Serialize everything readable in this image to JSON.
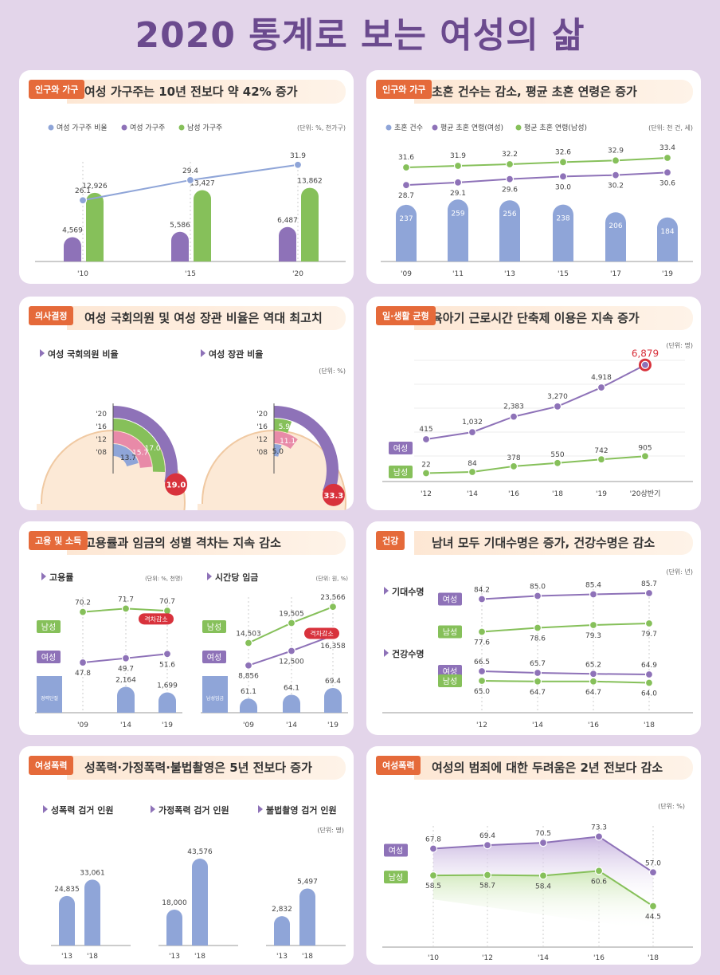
{
  "page_title": "2020 통계로 보는 여성의 삶",
  "colors": {
    "purple": "#8e72b8",
    "green": "#86c05a",
    "blue": "#8fa5d8",
    "red": "#d8323c",
    "orange": "#e56a3a"
  },
  "chart_data": [
    {
      "id": "c1",
      "tag": "인구와 가구",
      "headline": "여성 가구주는 10년 전보다 약 42% 증가",
      "type": "bar+line",
      "unit": "(단위: %, 천가구)",
      "legend": [
        "여성 가구주 비율",
        "여성 가구주",
        "남성 가구주"
      ],
      "categories": [
        "'10",
        "'15",
        "'20"
      ],
      "line": {
        "name": "여성 가구주 비율",
        "values": [
          26.1,
          29.4,
          31.9
        ],
        "labels": [
          "26.1",
          "29.4",
          "31.9"
        ]
      },
      "series": [
        {
          "name": "여성 가구주",
          "values": [
            4569,
            5586,
            6487
          ],
          "labels": [
            "4,569",
            "5,586",
            "6,487"
          ]
        },
        {
          "name": "남성 가구주",
          "values": [
            12926,
            13427,
            13862
          ],
          "labels": [
            "12,926",
            "13,427",
            "13,862"
          ]
        }
      ]
    },
    {
      "id": "c2",
      "tag": "인구와 가구",
      "headline": "초혼 건수는 감소, 평균 초혼 연령은 증가",
      "type": "bar+line",
      "unit": "(단위: 천 건, 세)",
      "legend": [
        "초혼 건수",
        "평균 초혼 연령(여성)",
        "평균 초혼 연령(남성)"
      ],
      "categories": [
        "'09",
        "'11",
        "'13",
        "'15",
        "'17",
        "'19"
      ],
      "bars": {
        "name": "초혼 건수",
        "values": [
          237,
          259,
          256,
          238,
          206,
          184
        ],
        "labels": [
          "237",
          "259",
          "256",
          "238",
          "206",
          "184"
        ]
      },
      "lines": [
        {
          "name": "평균 초혼 연령(남성)",
          "values": [
            31.6,
            31.9,
            32.2,
            32.6,
            32.9,
            33.4
          ],
          "labels": [
            "31.6",
            "31.9",
            "32.2",
            "32.6",
            "32.9",
            "33.4"
          ]
        },
        {
          "name": "평균 초혼 연령(여성)",
          "values": [
            28.7,
            29.1,
            29.6,
            30.0,
            30.2,
            30.6
          ],
          "labels": [
            "28.7",
            "29.1",
            "29.6",
            "30.0",
            "30.2",
            "30.6"
          ]
        }
      ]
    },
    {
      "id": "c3",
      "tag": "의사결정",
      "headline": "여성 국회의원 및 여성 장관 비율은 역대 최고치",
      "type": "radial-bar",
      "unit": "(단위: %)",
      "charts": [
        {
          "title": "여성 국회의원 비율",
          "years": [
            "'20",
            "'16",
            "'12",
            "'08"
          ],
          "values": [
            19.0,
            17.0,
            15.7,
            13.7
          ],
          "labels": [
            "19.0",
            "17.0",
            "15.7",
            "13.7"
          ]
        },
        {
          "title": "여성 장관 비율",
          "years": [
            "'20",
            "'16",
            "'12",
            "'08"
          ],
          "values": [
            33.3,
            5.9,
            11.1,
            5.0
          ],
          "labels": [
            "33.3",
            "5.9",
            "11.1",
            "5.0"
          ]
        }
      ]
    },
    {
      "id": "c4",
      "tag": "일·생활 균형",
      "headline": "육아기 근로시간 단축제 이용은 지속 증가",
      "type": "line",
      "unit": "(단위: 명)",
      "categories": [
        "'12",
        "'14",
        "'16",
        "'18",
        "'19",
        "'20상반기"
      ],
      "series": [
        {
          "name": "여성",
          "values": [
            415,
            1032,
            2383,
            3270,
            4918,
            6879
          ],
          "labels": [
            "415",
            "1,032",
            "2,383",
            "3,270",
            "4,918",
            "6,879"
          ]
        },
        {
          "name": "남성",
          "values": [
            22,
            84,
            378,
            550,
            742,
            905
          ],
          "labels": [
            "22",
            "84",
            "378",
            "550",
            "742",
            "905"
          ]
        }
      ]
    },
    {
      "id": "c5",
      "tag": "고용 및 소득",
      "headline": "고용률과 임금의 성별 격차는 지속 감소",
      "type": "line+bar",
      "gap_label": "격차감소",
      "charts": [
        {
          "title": "고용률",
          "unit": "(단위: %, 천명)",
          "categories": [
            "'09",
            "'14",
            "'19"
          ],
          "male": {
            "name": "남성",
            "values": [
              70.2,
              71.7,
              70.7
            ],
            "labels": [
              "70.2",
              "71.7",
              "70.7"
            ]
          },
          "female": {
            "name": "여성",
            "values": [
              47.8,
              49.7,
              51.6
            ],
            "labels": [
              "47.8",
              "49.7",
              "51.6"
            ]
          },
          "bars": {
            "name": "경력단절여성",
            "values": [
              null,
              2164,
              1699
            ],
            "labels": [
              "",
              "2,164",
              "1,699"
            ]
          }
        },
        {
          "title": "시간당 임금",
          "unit": "(단위: 원, %)",
          "categories": [
            "'09",
            "'14",
            "'19"
          ],
          "male": {
            "name": "남성",
            "values": [
              14503,
              19505,
              23566
            ],
            "labels": [
              "14,503",
              "19,505",
              "23,566"
            ]
          },
          "female": {
            "name": "여성",
            "values": [
              8856,
              12500,
              16358
            ],
            "labels": [
              "8,856",
              "12,500",
              "16,358"
            ]
          },
          "bars": {
            "name": "남성임금대비여성임금비율",
            "values": [
              61.1,
              64.1,
              69.4
            ],
            "labels": [
              "61.1",
              "64.1",
              "69.4"
            ]
          }
        }
      ]
    },
    {
      "id": "c6",
      "tag": "건강",
      "headline": "남녀 모두 기대수명은 증가, 건강수명은 감소",
      "type": "line",
      "unit": "(단위: 년)",
      "categories": [
        "'12",
        "'14",
        "'16",
        "'18"
      ],
      "groups": [
        {
          "title": "기대수명",
          "female": {
            "name": "여성",
            "values": [
              84.2,
              85.0,
              85.4,
              85.7
            ],
            "labels": [
              "84.2",
              "85.0",
              "85.4",
              "85.7"
            ]
          },
          "male": {
            "name": "남성",
            "values": [
              77.6,
              78.6,
              79.3,
              79.7
            ],
            "labels": [
              "77.6",
              "78.6",
              "79.3",
              "79.7"
            ]
          }
        },
        {
          "title": "건강수명",
          "female": {
            "name": "여성",
            "values": [
              66.5,
              65.7,
              65.2,
              64.9
            ],
            "labels": [
              "66.5",
              "65.7",
              "65.2",
              "64.9"
            ]
          },
          "male": {
            "name": "남성",
            "values": [
              65.0,
              64.7,
              64.7,
              64.0
            ],
            "labels": [
              "65.0",
              "64.7",
              "64.7",
              "64.0"
            ]
          }
        }
      ]
    },
    {
      "id": "c7",
      "tag": "여성폭력",
      "headline": "성폭력·가정폭력·불법촬영은 5년 전보다 증가",
      "type": "bar",
      "unit": "(단위: 명)",
      "charts": [
        {
          "title": "성폭력 검거 인원",
          "categories": [
            "'13",
            "'18"
          ],
          "values": [
            24835,
            33061
          ],
          "labels": [
            "24,835",
            "33,061"
          ]
        },
        {
          "title": "가정폭력 검거 인원",
          "categories": [
            "'13",
            "'18"
          ],
          "values": [
            18000,
            43576
          ],
          "labels": [
            "18,000",
            "43,576"
          ]
        },
        {
          "title": "불법촬영 검거 인원",
          "categories": [
            "'13",
            "'18"
          ],
          "values": [
            2832,
            5497
          ],
          "labels": [
            "2,832",
            "5,497"
          ]
        }
      ]
    },
    {
      "id": "c8",
      "tag": "여성폭력",
      "headline": "여성의 범죄에 대한 두려움은 2년 전보다 감소",
      "type": "area",
      "unit": "(단위: %)",
      "categories": [
        "'10",
        "'12",
        "'14",
        "'16",
        "'18"
      ],
      "series": [
        {
          "name": "여성",
          "values": [
            67.8,
            69.4,
            70.5,
            73.3,
            57.0
          ],
          "labels": [
            "67.8",
            "69.4",
            "70.5",
            "73.3",
            "57.0"
          ]
        },
        {
          "name": "남성",
          "values": [
            58.5,
            58.7,
            58.4,
            60.6,
            44.5
          ],
          "labels": [
            "58.5",
            "58.7",
            "58.4",
            "60.6",
            "44.5"
          ]
        }
      ]
    }
  ]
}
